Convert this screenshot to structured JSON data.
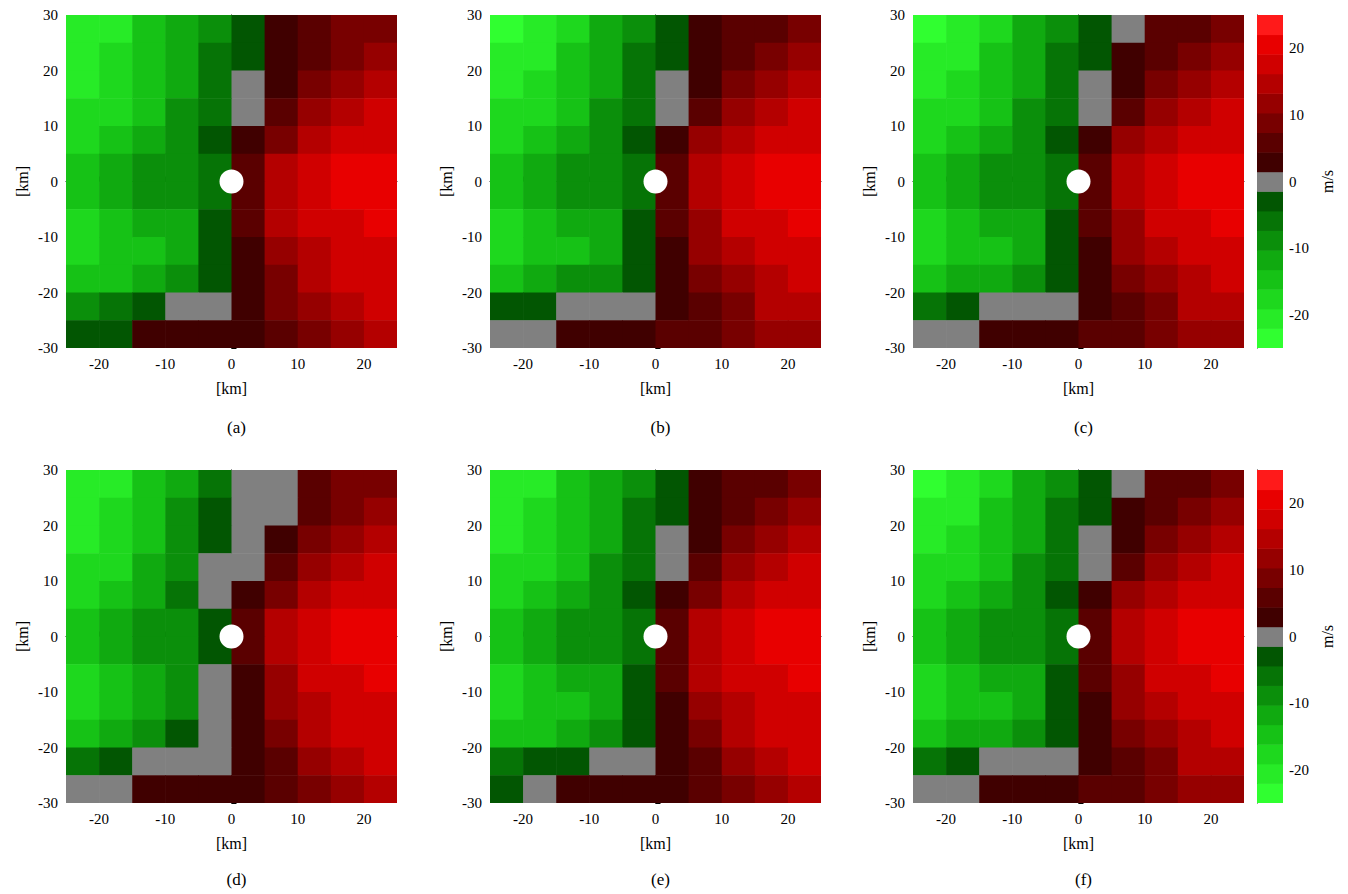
{
  "chart_data": [
    {
      "type": "heatmap",
      "title": "(a)",
      "xlabel": "[km]",
      "ylabel": "[km]",
      "xlim": [
        -25,
        25
      ],
      "ylim": [
        -30,
        30
      ],
      "xticks": [
        -20,
        -10,
        0,
        10,
        20
      ],
      "yticks": [
        -30,
        -20,
        -10,
        0,
        10,
        20,
        30
      ],
      "x": [
        -22.5,
        -17.5,
        -12.5,
        -7.5,
        -2.5,
        2.5,
        7.5,
        12.5,
        17.5,
        22.5
      ],
      "y": [
        27.5,
        22.5,
        17.5,
        12.5,
        7.5,
        2.5,
        -2.5,
        -7.5,
        -12.5,
        -17.5,
        -22.5,
        -27.5
      ],
      "values": [
        [
          -22,
          -20,
          -16,
          -12,
          -8,
          -3,
          2,
          6,
          8,
          10
        ],
        [
          -21,
          -19,
          -15,
          -11,
          -7,
          -2,
          3,
          7,
          9,
          12
        ],
        [
          -20,
          -18,
          -15,
          -11,
          -6,
          -1,
          4,
          9,
          12,
          14
        ],
        [
          -19,
          -17,
          -14,
          -10,
          -5,
          1,
          7,
          12,
          15,
          17
        ],
        [
          -18,
          -16,
          -13,
          -9,
          -4,
          2,
          10,
          15,
          18,
          19
        ],
        [
          -16,
          -12,
          -9,
          -10,
          -5,
          5,
          15,
          18,
          20,
          21
        ],
        [
          -15,
          -12,
          -9,
          -9,
          -5,
          6,
          15,
          18,
          20,
          21
        ],
        [
          -17,
          -14,
          -13,
          -12,
          -4,
          5,
          14,
          17,
          19,
          20
        ],
        [
          -18,
          -16,
          -14,
          -12,
          -3,
          4,
          12,
          16,
          18,
          19
        ],
        [
          -16,
          -15,
          -12,
          -9,
          -2,
          3,
          10,
          14,
          17,
          18
        ],
        [
          -8,
          -6,
          -4,
          -1,
          0,
          2,
          8,
          12,
          15,
          17
        ],
        [
          -4,
          -2,
          2,
          4,
          3,
          4,
          6,
          9,
          12,
          14
        ]
      ]
    },
    {
      "type": "heatmap",
      "title": "(b)",
      "xlabel": "[km]",
      "ylabel": "[km]",
      "xlim": [
        -25,
        25
      ],
      "ylim": [
        -30,
        30
      ],
      "xticks": [
        -20,
        -10,
        0,
        10,
        20
      ],
      "yticks": [
        -30,
        -20,
        -10,
        0,
        10,
        20,
        30
      ],
      "x": [
        -22.5,
        -17.5,
        -12.5,
        -7.5,
        -2.5,
        2.5,
        7.5,
        12.5,
        17.5,
        22.5
      ],
      "y": [
        27.5,
        22.5,
        17.5,
        12.5,
        7.5,
        2.5,
        -2.5,
        -7.5,
        -12.5,
        -17.5,
        -22.5,
        -27.5
      ],
      "values": [
        [
          -23,
          -21,
          -17,
          -12,
          -8,
          -3,
          2,
          5,
          7,
          9
        ],
        [
          -22,
          -20,
          -16,
          -12,
          -7,
          -2,
          2,
          6,
          9,
          11
        ],
        [
          -21,
          -19,
          -15,
          -11,
          -6,
          -1,
          4,
          8,
          12,
          14
        ],
        [
          -19,
          -17,
          -14,
          -10,
          -5,
          1,
          7,
          12,
          15,
          17
        ],
        [
          -18,
          -16,
          -13,
          -9,
          -4,
          2,
          11,
          15,
          18,
          19
        ],
        [
          -16,
          -13,
          -10,
          -10,
          -5,
          5,
          15,
          18,
          20,
          21
        ],
        [
          -15,
          -13,
          -10,
          -9,
          -5,
          6,
          15,
          18,
          20,
          21
        ],
        [
          -17,
          -15,
          -13,
          -12,
          -4,
          5,
          13,
          17,
          19,
          20
        ],
        [
          -17,
          -16,
          -14,
          -12,
          -3,
          3,
          11,
          15,
          18,
          19
        ],
        [
          -14,
          -13,
          -10,
          -8,
          -2,
          2,
          9,
          13,
          16,
          18
        ],
        [
          -4,
          -2,
          0,
          0,
          0,
          2,
          6,
          10,
          14,
          16
        ],
        [
          0,
          1,
          3,
          4,
          4,
          5,
          6,
          8,
          11,
          13
        ]
      ]
    },
    {
      "type": "heatmap",
      "title": "(c)",
      "xlabel": "[km]",
      "ylabel": "[km]",
      "xlim": [
        -25,
        25
      ],
      "ylim": [
        -30,
        30
      ],
      "xticks": [
        -20,
        -10,
        0,
        10,
        20
      ],
      "yticks": [
        -30,
        -20,
        -10,
        0,
        10,
        20,
        30
      ],
      "x": [
        -22.5,
        -17.5,
        -12.5,
        -7.5,
        -2.5,
        2.5,
        7.5,
        12.5,
        17.5,
        22.5
      ],
      "y": [
        27.5,
        22.5,
        17.5,
        12.5,
        7.5,
        2.5,
        -2.5,
        -7.5,
        -12.5,
        -17.5,
        -22.5,
        -27.5
      ],
      "values": [
        [
          -23,
          -21,
          -17,
          -12,
          -8,
          -4,
          1,
          5,
          7,
          9
        ],
        [
          -22,
          -20,
          -16,
          -12,
          -7,
          -3,
          2,
          6,
          8,
          11
        ],
        [
          -21,
          -19,
          -15,
          -11,
          -6,
          -1,
          3,
          8,
          11,
          14
        ],
        [
          -19,
          -17,
          -14,
          -10,
          -5,
          0,
          7,
          12,
          15,
          17
        ],
        [
          -18,
          -16,
          -13,
          -9,
          -4,
          2,
          11,
          15,
          18,
          19
        ],
        [
          -16,
          -13,
          -10,
          -10,
          -5,
          5,
          15,
          18,
          20,
          21
        ],
        [
          -15,
          -13,
          -10,
          -9,
          -5,
          6,
          15,
          18,
          20,
          21
        ],
        [
          -17,
          -15,
          -13,
          -12,
          -4,
          5,
          13,
          17,
          19,
          20
        ],
        [
          -17,
          -16,
          -14,
          -12,
          -3,
          3,
          11,
          15,
          18,
          19
        ],
        [
          -14,
          -13,
          -11,
          -8,
          -2,
          2,
          9,
          13,
          16,
          18
        ],
        [
          -5,
          -3,
          -1,
          0,
          0,
          2,
          6,
          10,
          14,
          16
        ],
        [
          -1,
          0,
          2,
          3,
          4,
          5,
          6,
          8,
          11,
          13
        ]
      ],
      "colorbar": {
        "range": [
          -25,
          25
        ],
        "ticks": [
          -20,
          -10,
          0,
          10,
          20
        ],
        "label": "m/s"
      }
    },
    {
      "type": "heatmap",
      "title": "(d)",
      "xlabel": "[km]",
      "ylabel": "[km]",
      "xlim": [
        -25,
        25
      ],
      "ylim": [
        -30,
        30
      ],
      "xticks": [
        -20,
        -10,
        0,
        10,
        20
      ],
      "yticks": [
        -30,
        -20,
        -10,
        0,
        10,
        20,
        30
      ],
      "x": [
        -22.5,
        -17.5,
        -12.5,
        -7.5,
        -2.5,
        2.5,
        7.5,
        12.5,
        17.5,
        22.5
      ],
      "y": [
        27.5,
        22.5,
        17.5,
        12.5,
        7.5,
        2.5,
        -2.5,
        -7.5,
        -12.5,
        -17.5,
        -22.5,
        -27.5
      ],
      "values": [
        [
          -22,
          -20,
          -16,
          -12,
          -5,
          0,
          1,
          5,
          8,
          10
        ],
        [
          -21,
          -19,
          -15,
          -10,
          -3,
          1,
          0,
          6,
          9,
          12
        ],
        [
          -20,
          -18,
          -14,
          -9,
          -2,
          0,
          2,
          8,
          12,
          14
        ],
        [
          -19,
          -17,
          -13,
          -8,
          -1,
          1,
          5,
          11,
          15,
          17
        ],
        [
          -18,
          -16,
          -12,
          -7,
          -1,
          2,
          9,
          14,
          18,
          19
        ],
        [
          -16,
          -12,
          -9,
          -9,
          -3,
          5,
          14,
          18,
          20,
          21
        ],
        [
          -15,
          -12,
          -9,
          -8,
          -2,
          6,
          14,
          18,
          20,
          21
        ],
        [
          -17,
          -14,
          -12,
          -10,
          -1,
          4,
          13,
          17,
          19,
          20
        ],
        [
          -17,
          -15,
          -12,
          -8,
          0,
          3,
          11,
          16,
          18,
          19
        ],
        [
          -14,
          -12,
          -8,
          -4,
          0,
          2,
          9,
          14,
          17,
          18
        ],
        [
          -5,
          -2,
          0,
          1,
          1,
          2,
          7,
          11,
          15,
          17
        ],
        [
          -1,
          1,
          2,
          3,
          2,
          4,
          6,
          9,
          12,
          14
        ]
      ]
    },
    {
      "type": "heatmap",
      "title": "(e)",
      "xlabel": "[km]",
      "ylabel": "[km]",
      "xlim": [
        -25,
        25
      ],
      "ylim": [
        -30,
        30
      ],
      "xticks": [
        -20,
        -10,
        0,
        10,
        20
      ],
      "yticks": [
        -30,
        -20,
        -10,
        0,
        10,
        20,
        30
      ],
      "x": [
        -22.5,
        -17.5,
        -12.5,
        -7.5,
        -2.5,
        2.5,
        7.5,
        12.5,
        17.5,
        22.5
      ],
      "y": [
        27.5,
        22.5,
        17.5,
        12.5,
        7.5,
        2.5,
        -2.5,
        -7.5,
        -12.5,
        -17.5,
        -22.5,
        -27.5
      ],
      "values": [
        [
          -22,
          -20,
          -16,
          -12,
          -8,
          -3,
          2,
          5,
          7,
          9
        ],
        [
          -21,
          -19,
          -15,
          -11,
          -7,
          -2,
          2,
          6,
          9,
          11
        ],
        [
          -20,
          -18,
          -15,
          -11,
          -6,
          -1,
          4,
          8,
          12,
          14
        ],
        [
          -19,
          -17,
          -14,
          -10,
          -5,
          1,
          7,
          12,
          15,
          17
        ],
        [
          -18,
          -16,
          -13,
          -9,
          -4,
          2,
          10,
          15,
          18,
          19
        ],
        [
          -16,
          -12,
          -9,
          -10,
          -5,
          5,
          15,
          18,
          20,
          21
        ],
        [
          -15,
          -12,
          -9,
          -9,
          -5,
          6,
          15,
          18,
          20,
          21
        ],
        [
          -17,
          -14,
          -13,
          -12,
          -4,
          5,
          14,
          17,
          19,
          20
        ],
        [
          -17,
          -16,
          -14,
          -12,
          -3,
          4,
          12,
          16,
          18,
          19
        ],
        [
          -15,
          -14,
          -11,
          -8,
          -2,
          3,
          10,
          14,
          17,
          18
        ],
        [
          -6,
          -4,
          -2,
          0,
          0,
          2,
          7,
          11,
          15,
          17
        ],
        [
          -2,
          0,
          2,
          4,
          3,
          4,
          6,
          9,
          12,
          14
        ]
      ]
    },
    {
      "type": "heatmap",
      "title": "(f)",
      "xlabel": "[km]",
      "ylabel": "[km]",
      "xlim": [
        -25,
        25
      ],
      "ylim": [
        -30,
        30
      ],
      "xticks": [
        -20,
        -10,
        0,
        10,
        20
      ],
      "yticks": [
        -30,
        -20,
        -10,
        0,
        10,
        20,
        30
      ],
      "x": [
        -22.5,
        -17.5,
        -12.5,
        -7.5,
        -2.5,
        2.5,
        7.5,
        12.5,
        17.5,
        22.5
      ],
      "y": [
        27.5,
        22.5,
        17.5,
        12.5,
        7.5,
        2.5,
        -2.5,
        -7.5,
        -12.5,
        -17.5,
        -22.5,
        -27.5
      ],
      "values": [
        [
          -23,
          -21,
          -17,
          -12,
          -8,
          -4,
          1,
          5,
          7,
          9
        ],
        [
          -22,
          -20,
          -16,
          -12,
          -7,
          -3,
          2,
          6,
          8,
          11
        ],
        [
          -21,
          -19,
          -15,
          -11,
          -6,
          -1,
          3,
          8,
          11,
          14
        ],
        [
          -19,
          -17,
          -14,
          -10,
          -5,
          0,
          7,
          12,
          15,
          17
        ],
        [
          -18,
          -16,
          -13,
          -9,
          -4,
          2,
          11,
          15,
          18,
          19
        ],
        [
          -16,
          -13,
          -10,
          -10,
          -5,
          5,
          15,
          18,
          20,
          21
        ],
        [
          -15,
          -13,
          -10,
          -9,
          -5,
          6,
          15,
          18,
          20,
          21
        ],
        [
          -17,
          -15,
          -13,
          -12,
          -4,
          5,
          13,
          17,
          19,
          20
        ],
        [
          -17,
          -16,
          -14,
          -12,
          -3,
          3,
          11,
          15,
          18,
          19
        ],
        [
          -14,
          -13,
          -11,
          -8,
          -2,
          2,
          9,
          13,
          16,
          18
        ],
        [
          -5,
          -3,
          -1,
          0,
          0,
          2,
          6,
          10,
          14,
          16
        ],
        [
          -1,
          0,
          2,
          3,
          4,
          5,
          6,
          8,
          11,
          13
        ]
      ],
      "colorbar": {
        "range": [
          -25,
          25
        ],
        "ticks": [
          -20,
          -10,
          0,
          10,
          20
        ],
        "label": "m/s"
      }
    }
  ]
}
